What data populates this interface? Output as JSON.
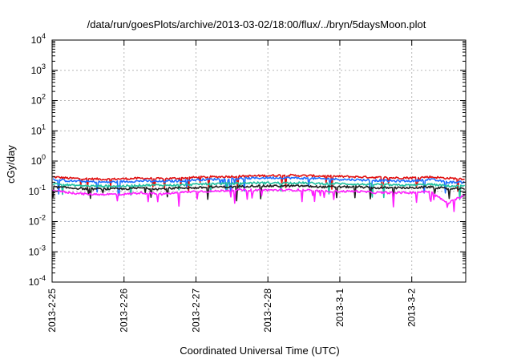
{
  "chart_data": {
    "type": "line",
    "title": "/data/run/goesPlots/archive/2013-03-02/18:00/flux/../bryn/5daysMoon.plot",
    "xlabel": "Coordinated Universal Time (UTC)",
    "ylabel": "cGy/day",
    "yscale": "log",
    "ylim": [
      0.0001,
      10000
    ],
    "xlim": [
      "2013-02-25T00:00",
      "2013-03-02T18:00"
    ],
    "grid": true,
    "xticks": [
      "2013-2-25",
      "2013-2-26",
      "2013-2-27",
      "2013-2-28",
      "2013-3-1",
      "2013-3-2"
    ],
    "xtick_values": [
      "2013-02-25T00:00",
      "2013-02-26T00:00",
      "2013-02-27T00:00",
      "2013-02-28T00:00",
      "2013-03-01T00:00",
      "2013-03-02T00:00"
    ],
    "yticks": [
      {
        "base": "10",
        "exp": "4"
      },
      {
        "base": "10",
        "exp": "3"
      },
      {
        "base": "10",
        "exp": "2"
      },
      {
        "base": "10",
        "exp": "1"
      },
      {
        "base": "10",
        "exp": "0"
      },
      {
        "base": "10",
        "exp": "-1"
      },
      {
        "base": "10",
        "exp": "-2"
      },
      {
        "base": "10",
        "exp": "-3"
      },
      {
        "base": "10",
        "exp": "-4"
      }
    ],
    "ytick_values": [
      10000,
      1000,
      100,
      10,
      1,
      0.1,
      0.01,
      0.001,
      0.0001
    ],
    "x": [
      "2013-02-25T00:00",
      "2013-02-25T06:00",
      "2013-02-25T12:00",
      "2013-02-25T18:00",
      "2013-02-26T00:00",
      "2013-02-26T06:00",
      "2013-02-26T12:00",
      "2013-02-26T18:00",
      "2013-02-27T00:00",
      "2013-02-27T06:00",
      "2013-02-27T12:00",
      "2013-02-27T18:00",
      "2013-02-28T00:00",
      "2013-02-28T06:00",
      "2013-02-28T12:00",
      "2013-02-28T18:00",
      "2013-03-01T00:00",
      "2013-03-01T06:00",
      "2013-03-01T12:00",
      "2013-03-01T18:00",
      "2013-03-02T00:00",
      "2013-03-02T06:00",
      "2013-03-02T12:00",
      "2013-03-02T18:00"
    ],
    "series": [
      {
        "color": "#e01010",
        "values": [
          0.3,
          0.27,
          0.26,
          0.25,
          0.26,
          0.27,
          0.26,
          0.27,
          0.29,
          0.3,
          0.31,
          0.32,
          0.33,
          0.34,
          0.33,
          0.32,
          0.31,
          0.3,
          0.29,
          0.28,
          0.28,
          0.3,
          0.27,
          0.26
        ]
      },
      {
        "color": "#1f6fff",
        "values": [
          0.25,
          0.22,
          0.21,
          0.2,
          0.21,
          0.22,
          0.21,
          0.22,
          0.24,
          0.25,
          0.26,
          0.27,
          0.28,
          0.28,
          0.27,
          0.26,
          0.25,
          0.24,
          0.23,
          0.22,
          0.22,
          0.25,
          0.2,
          0.2
        ]
      },
      {
        "color": "#20c0a0",
        "values": [
          0.18,
          0.16,
          0.15,
          0.15,
          0.15,
          0.16,
          0.16,
          0.16,
          0.17,
          0.18,
          0.18,
          0.19,
          0.19,
          0.19,
          0.19,
          0.18,
          0.18,
          0.17,
          0.17,
          0.16,
          0.16,
          0.17,
          0.15,
          0.15
        ]
      },
      {
        "color": "#202020",
        "values": [
          0.14,
          0.13,
          0.12,
          0.12,
          0.12,
          0.13,
          0.12,
          0.13,
          0.13,
          0.14,
          0.14,
          0.15,
          0.15,
          0.15,
          0.15,
          0.14,
          0.14,
          0.14,
          0.13,
          0.13,
          0.13,
          0.14,
          0.12,
          0.12
        ]
      },
      {
        "color": "#ff20ff",
        "values": [
          0.11,
          0.09,
          0.08,
          0.08,
          0.08,
          0.09,
          0.08,
          0.09,
          0.1,
          0.1,
          0.11,
          0.11,
          0.11,
          0.11,
          0.11,
          0.1,
          0.1,
          0.1,
          0.09,
          0.09,
          0.09,
          0.1,
          0.04,
          0.08
        ]
      }
    ]
  }
}
